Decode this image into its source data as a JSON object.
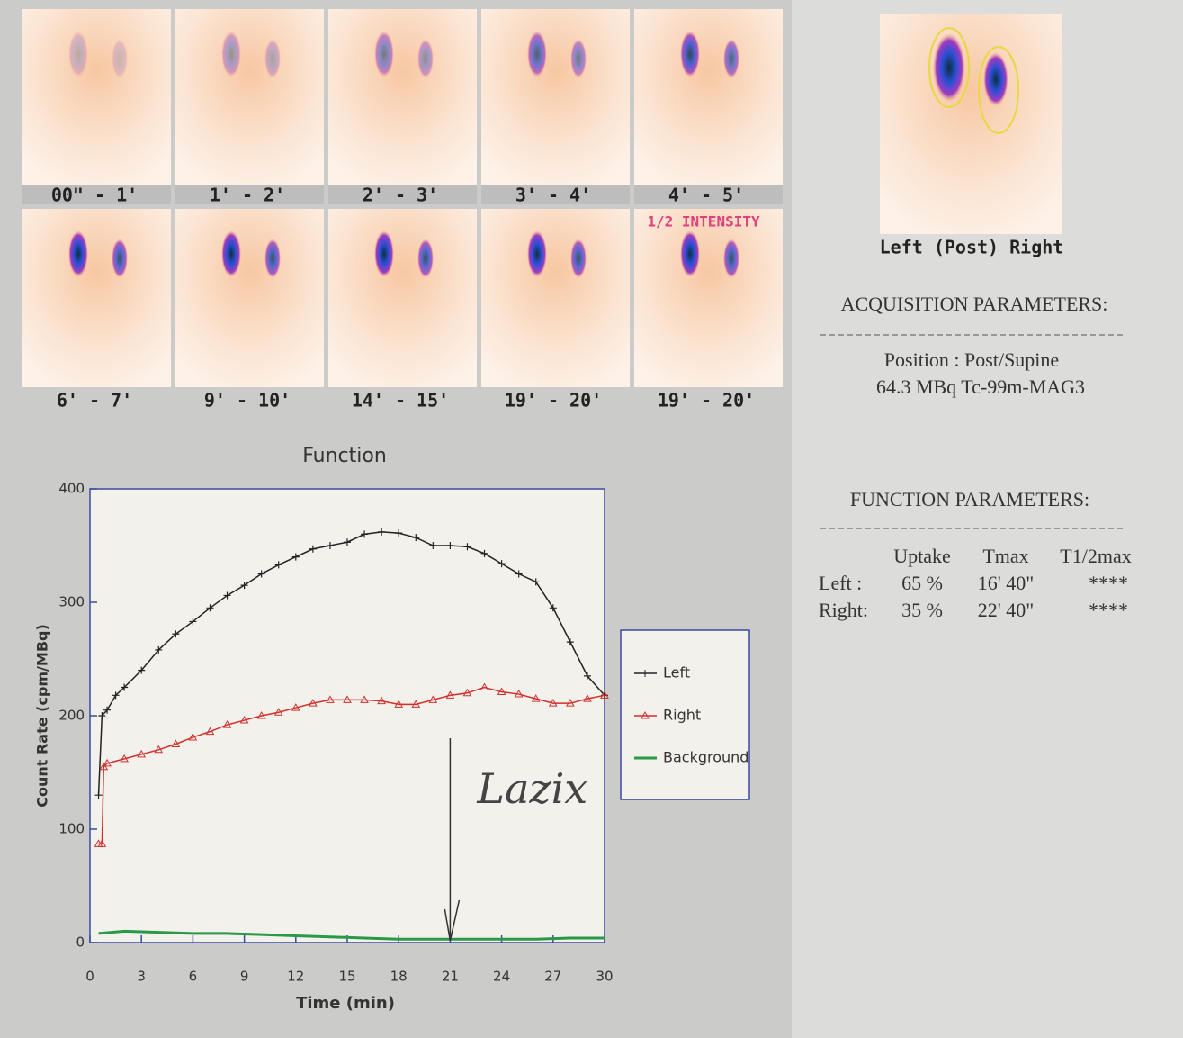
{
  "frames": [
    {
      "label": "00\" - 1'"
    },
    {
      "label": "1' - 2'"
    },
    {
      "label": "2' - 3'"
    },
    {
      "label": "3' - 4'"
    },
    {
      "label": "4' - 5'"
    },
    {
      "label": "6' - 7'"
    },
    {
      "label": "9' - 10'"
    },
    {
      "label": "14' - 15'"
    },
    {
      "label": "19' - 20'"
    },
    {
      "label": "19' - 20'"
    }
  ],
  "intensity_note": "1/2 INTENSITY",
  "summary_image": {
    "caption": "Left (Post) Right"
  },
  "acquisition": {
    "title": "ACQUISITION PARAMETERS:",
    "position": "Position : Post/Supine",
    "dose": "64.3 MBq Tc-99m-MAG3"
  },
  "function_parameters": {
    "title": "FUNCTION PARAMETERS:",
    "header": [
      "Uptake",
      "Tmax",
      "T1/2max"
    ],
    "rows": [
      [
        "Left :",
        "65 %",
        "16' 40\"",
        "****"
      ],
      [
        "Right:",
        "35 %",
        "22' 40\"",
        "****"
      ]
    ]
  },
  "chart_data": {
    "type": "line",
    "title": "Function",
    "x_label": "Time (min)",
    "y_label": "Count Rate (cpm/MBq)",
    "xlim": [
      0,
      30
    ],
    "xticks": [
      0,
      3,
      6,
      9,
      12,
      15,
      18,
      21,
      24,
      27,
      30
    ],
    "ylim": [
      0,
      400
    ],
    "yticks": [
      0,
      100,
      200,
      300,
      400
    ],
    "annotation": {
      "text": "Lazix",
      "x": 21
    },
    "series": [
      {
        "name": "Left",
        "color": "#222222",
        "marker": "plus",
        "x": [
          0.5,
          0.7,
          1,
          1.5,
          2,
          3,
          4,
          5,
          6,
          7,
          8,
          9,
          10,
          11,
          12,
          13,
          14,
          15,
          16,
          17,
          18,
          19,
          20,
          21,
          22,
          23,
          24,
          25,
          26,
          27,
          28,
          29,
          30
        ],
        "values": [
          130,
          200,
          205,
          218,
          225,
          240,
          258,
          272,
          283,
          295,
          306,
          315,
          325,
          333,
          340,
          347,
          350,
          353,
          360,
          362,
          361,
          357,
          350,
          350,
          349,
          343,
          334,
          325,
          318,
          295,
          265,
          235,
          218
        ]
      },
      {
        "name": "Right",
        "color": "#d0312d",
        "marker": "triangle",
        "x": [
          0.5,
          0.7,
          0.8,
          1,
          2,
          3,
          4,
          5,
          6,
          7,
          8,
          9,
          10,
          11,
          12,
          13,
          14,
          15,
          16,
          17,
          18,
          19,
          20,
          21,
          22,
          23,
          24,
          25,
          26,
          27,
          28,
          29,
          30
        ],
        "values": [
          87,
          87,
          155,
          158,
          162,
          166,
          170,
          175,
          181,
          186,
          192,
          196,
          200,
          203,
          207,
          211,
          214,
          214,
          214,
          213,
          210,
          210,
          214,
          218,
          220,
          225,
          221,
          219,
          215,
          211,
          211,
          215,
          218
        ]
      },
      {
        "name": "Background",
        "color": "#2a9a48",
        "marker": "none",
        "x": [
          0.5,
          2,
          4,
          6,
          8,
          10,
          12,
          14,
          16,
          18,
          20,
          22,
          24,
          26,
          28,
          30
        ],
        "values": [
          8,
          10,
          9,
          8,
          8,
          7,
          6,
          5,
          4,
          3,
          3,
          3,
          3,
          3,
          4,
          4
        ]
      }
    ]
  }
}
